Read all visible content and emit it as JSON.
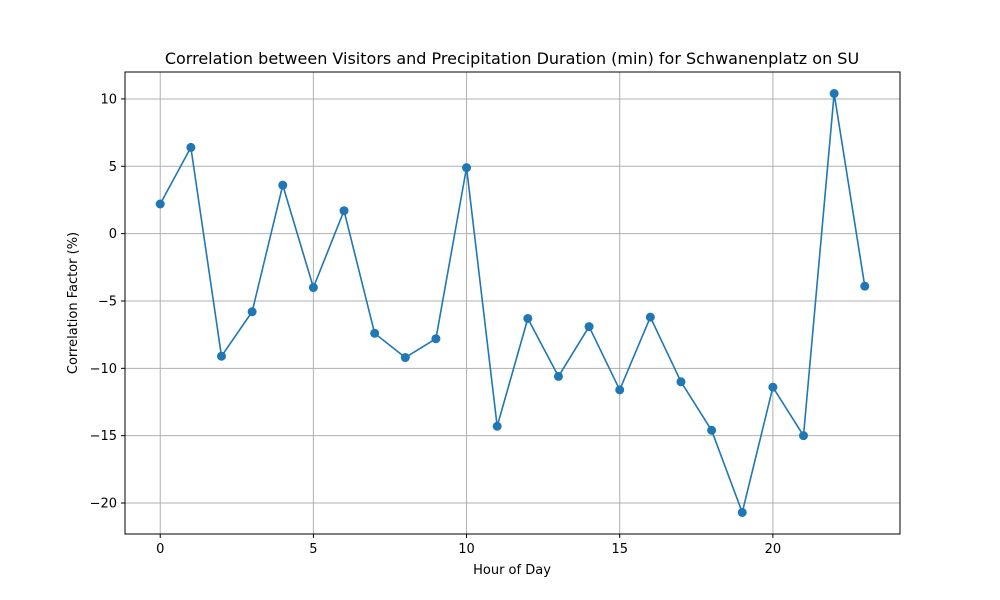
{
  "chart_data": {
    "type": "line",
    "title": "Correlation between Visitors and Precipitation Duration (min) for Schwanenplatz on SU",
    "xlabel": "Hour of Day",
    "ylabel": "Correlation Factor (%)",
    "xlim": [
      -1.15,
      24.15
    ],
    "ylim": [
      -22.3,
      12.0
    ],
    "xticks": [
      0,
      5,
      10,
      15,
      20
    ],
    "yticks": [
      -20,
      -15,
      -10,
      -5,
      0,
      5,
      10
    ],
    "grid": true,
    "line_color": "#1f77b4",
    "x": [
      0,
      1,
      2,
      3,
      4,
      5,
      6,
      7,
      8,
      9,
      10,
      11,
      12,
      13,
      14,
      15,
      16,
      17,
      18,
      19,
      20,
      21,
      22,
      23
    ],
    "y": [
      2.2,
      6.4,
      -9.1,
      -5.8,
      3.6,
      -4.0,
      1.7,
      -7.4,
      -9.2,
      -7.8,
      4.9,
      -14.3,
      -6.3,
      -10.6,
      -6.9,
      -11.6,
      -6.2,
      -11.0,
      -14.6,
      -20.7,
      -11.4,
      -15.0,
      10.4,
      -3.9
    ]
  }
}
